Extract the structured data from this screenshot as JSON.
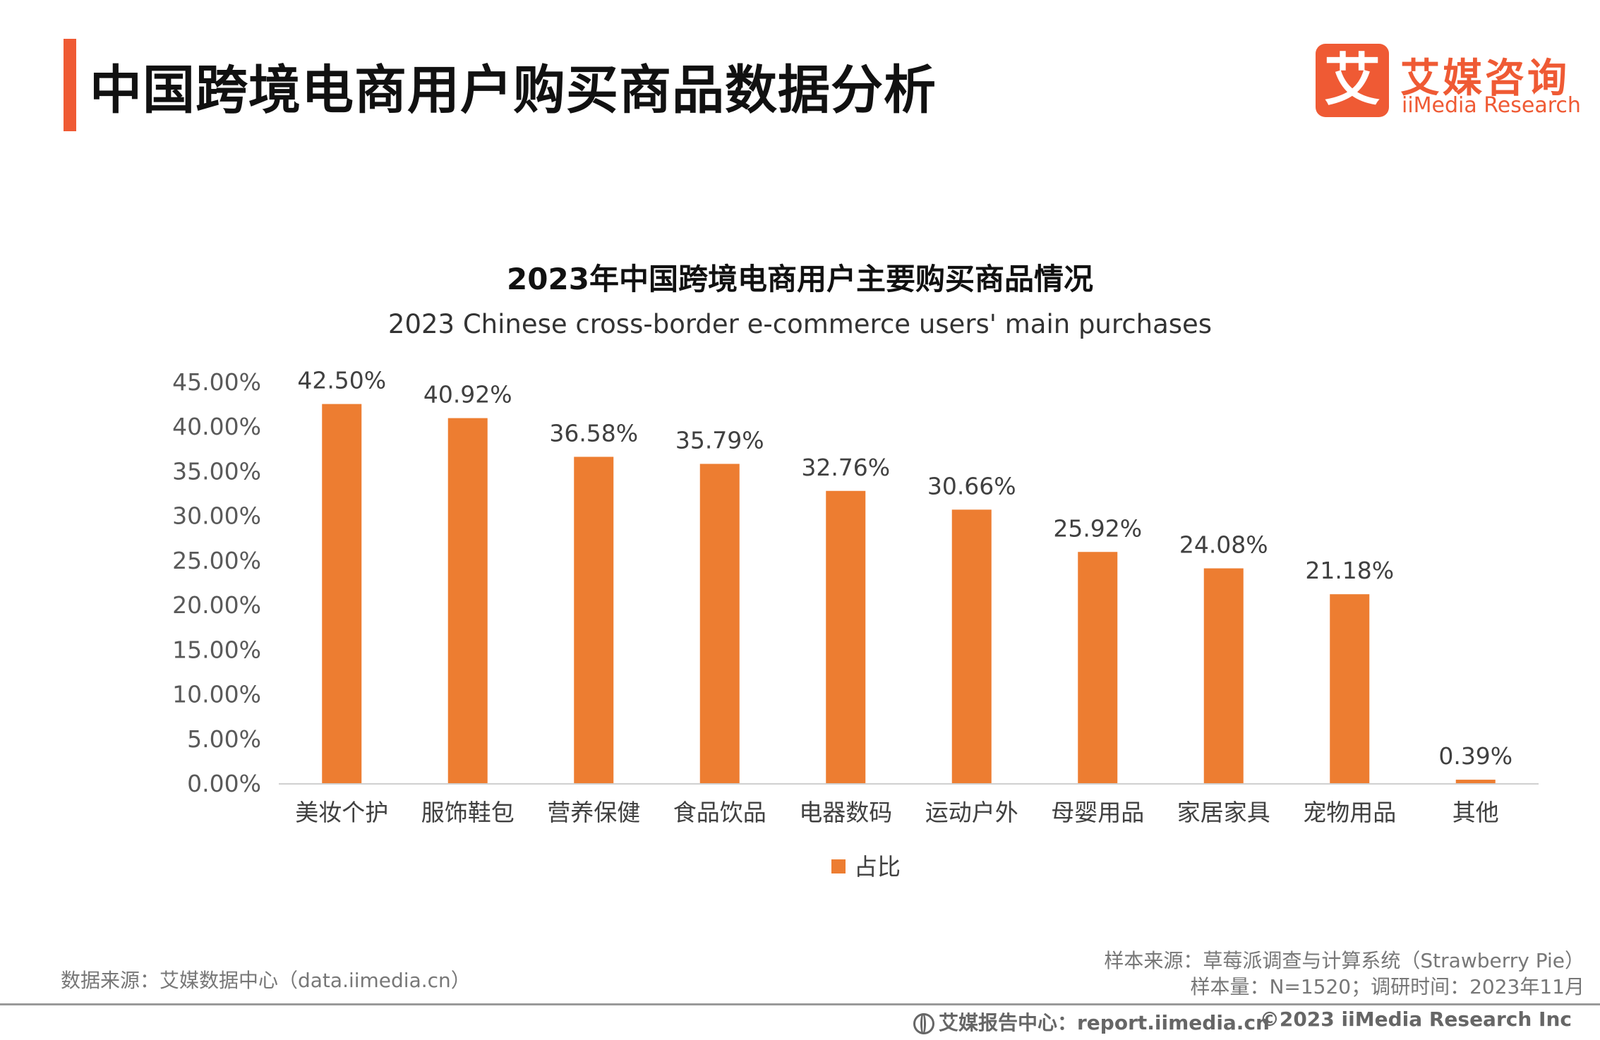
{
  "header": {
    "title": "中国跨境电商用户购买商品数据分析",
    "logo_mark": "艾",
    "logo_cn": "艾媒咨询",
    "logo_en": "iiMedia Research"
  },
  "colors": {
    "accent": "#ef5a34",
    "bar": "#ed7d31"
  },
  "chart_data": {
    "type": "bar",
    "title": "2023年中国跨境电商用户主要购买商品情况",
    "subtitle": "2023 Chinese cross-border e-commerce users' main purchases",
    "categories": [
      "美妆个护",
      "服饰鞋包",
      "营养保健",
      "食品饮品",
      "电器数码",
      "运动户外",
      "母婴用品",
      "家居家具",
      "宠物用品",
      "其他"
    ],
    "series": [
      {
        "name": "占比",
        "values": [
          42.5,
          40.92,
          36.58,
          35.79,
          32.76,
          30.66,
          25.92,
          24.08,
          21.18,
          0.39
        ]
      }
    ],
    "data_labels": [
      "42.50%",
      "40.92%",
      "36.58%",
      "35.79%",
      "32.76%",
      "30.66%",
      "25.92%",
      "24.08%",
      "21.18%",
      "0.39%"
    ],
    "y_ticks": [
      "0.00%",
      "5.00%",
      "10.00%",
      "15.00%",
      "20.00%",
      "25.00%",
      "30.00%",
      "35.00%",
      "40.00%",
      "45.00%"
    ],
    "ylim": [
      0,
      45
    ],
    "xlabel": "",
    "ylabel": "",
    "grid": false,
    "legend_position": "bottom"
  },
  "footer": {
    "source_left": "数据来源：艾媒数据中心（data.iimedia.cn）",
    "sample_source": "样本来源：草莓派调查与计算系统（Strawberry Pie）",
    "sample_info": "样本量：N=1520；调研时间：2023年11月",
    "report_center": "艾媒报告中心：report.iimedia.cn",
    "copyright": "©2023  iiMedia Research  Inc"
  }
}
